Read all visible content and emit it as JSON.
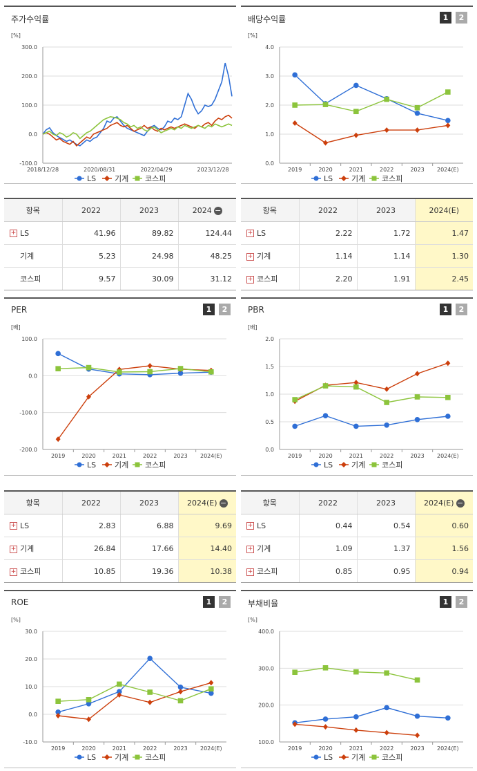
{
  "colors": {
    "s1": "#2f6fd6",
    "s2": "#cc3f0c",
    "s3": "#8cc43c",
    "highlight": "#fff8c8"
  },
  "legend_names": [
    "LS",
    "기계",
    "코스피"
  ],
  "btns": [
    "1",
    "2"
  ],
  "charts": [
    {
      "id": "c1",
      "title": "주가수익률",
      "unit": "[%]",
      "type": "line",
      "showBtns": false,
      "yticks": [
        "300.0",
        "200.0",
        "100.0",
        "0.0",
        "-100.0"
      ],
      "ylim": [
        -100,
        300
      ],
      "xticks": [
        "2018/12/28",
        "2020/08/31",
        "2022/04/29",
        "2023/12/28"
      ],
      "xtickpos": [
        0,
        0.3,
        0.6,
        0.9
      ],
      "series": [
        {
          "name": "LS",
          "values": [
            0,
            15,
            22,
            5,
            -5,
            -12,
            -18,
            -25,
            -20,
            -28,
            -35,
            -40,
            -30,
            -20,
            -25,
            -15,
            -10,
            5,
            20,
            45,
            40,
            55,
            60,
            45,
            30,
            20,
            15,
            10,
            5,
            0,
            -5,
            10,
            25,
            30,
            20,
            15,
            25,
            45,
            40,
            55,
            50,
            60,
            100,
            140,
            120,
            90,
            70,
            80,
            100,
            95,
            100,
            120,
            150,
            180,
            245,
            200,
            130
          ]
        },
        {
          "name": "기계",
          "values": [
            0,
            5,
            0,
            -10,
            -20,
            -15,
            -25,
            -30,
            -35,
            -25,
            -40,
            -30,
            -20,
            -10,
            -15,
            0,
            5,
            10,
            15,
            20,
            30,
            35,
            40,
            30,
            25,
            30,
            20,
            10,
            15,
            20,
            30,
            20,
            25,
            15,
            10,
            20,
            15,
            20,
            25,
            20,
            25,
            30,
            35,
            30,
            25,
            20,
            30,
            25,
            35,
            40,
            30,
            45,
            55,
            50,
            60,
            65,
            55
          ]
        },
        {
          "name": "코스피",
          "values": [
            0,
            5,
            10,
            0,
            -5,
            5,
            0,
            -10,
            -5,
            5,
            0,
            -15,
            -5,
            5,
            10,
            20,
            30,
            40,
            50,
            55,
            60,
            58,
            55,
            50,
            40,
            35,
            25,
            30,
            20,
            25,
            15,
            10,
            20,
            25,
            15,
            5,
            10,
            15,
            20,
            15,
            25,
            20,
            30,
            25,
            20,
            25,
            30,
            25,
            20,
            30,
            25,
            35,
            30,
            25,
            30,
            35,
            30
          ]
        }
      ]
    },
    {
      "id": "c2",
      "title": "배당수익률",
      "unit": "[%]",
      "type": "line",
      "showBtns": true,
      "yticks": [
        "4.0",
        "3.0",
        "2.0",
        "1.0",
        "0.0"
      ],
      "ylim": [
        0,
        4
      ],
      "xticks": [
        "2019",
        "2020",
        "2021",
        "2022",
        "2023",
        "2024(E)"
      ],
      "series": [
        {
          "name": "LS",
          "values": [
            3.04,
            2.05,
            2.68,
            2.22,
            1.72,
            1.47
          ]
        },
        {
          "name": "기계",
          "values": [
            1.38,
            0.7,
            0.96,
            1.14,
            1.14,
            1.3
          ]
        },
        {
          "name": "코스피",
          "values": [
            2.0,
            2.02,
            1.78,
            2.2,
            1.91,
            2.45
          ]
        }
      ]
    },
    {
      "id": "c3",
      "title": "PER",
      "unit": "[배]",
      "type": "line",
      "showBtns": true,
      "yticks": [
        "100.0",
        "0.0",
        "-100.0",
        "-200.0"
      ],
      "ylim": [
        -200,
        100
      ],
      "xticks": [
        "2019",
        "2020",
        "2021",
        "2022",
        "2023",
        "2024(E)"
      ],
      "series": [
        {
          "name": "LS",
          "values": [
            60,
            18,
            5,
            2.83,
            6.88,
            9.69
          ]
        },
        {
          "name": "기계",
          "values": [
            -172,
            -57,
            17,
            26.84,
            17.66,
            14.4
          ]
        },
        {
          "name": "코스피",
          "values": [
            19,
            22,
            10,
            10.85,
            19.36,
            10.38
          ]
        }
      ]
    },
    {
      "id": "c4",
      "title": "PBR",
      "unit": "[배]",
      "type": "line",
      "showBtns": true,
      "yticks": [
        "2.0",
        "1.5",
        "1.0",
        "0.5",
        "0.0"
      ],
      "ylim": [
        0,
        2
      ],
      "xticks": [
        "2019",
        "2020",
        "2021",
        "2022",
        "2023",
        "2024(E)"
      ],
      "series": [
        {
          "name": "LS",
          "values": [
            0.42,
            0.61,
            0.42,
            0.44,
            0.54,
            0.6
          ]
        },
        {
          "name": "기계",
          "values": [
            0.87,
            1.16,
            1.21,
            1.09,
            1.37,
            1.56
          ]
        },
        {
          "name": "코스피",
          "values": [
            0.9,
            1.15,
            1.13,
            0.85,
            0.95,
            0.94
          ]
        }
      ]
    },
    {
      "id": "c5",
      "title": "ROE",
      "unit": "[%]",
      "type": "line",
      "showBtns": true,
      "yticks": [
        "30.0",
        "20.0",
        "10.0",
        "0.0",
        "-10.0"
      ],
      "ylim": [
        -10,
        30
      ],
      "xticks": [
        "2019",
        "2020",
        "2021",
        "2022",
        "2023",
        "2024(E)"
      ],
      "series": [
        {
          "name": "LS",
          "values": [
            0.8,
            3.8,
            8.2,
            20.2,
            9.8,
            7.6
          ]
        },
        {
          "name": "기계",
          "values": [
            -0.5,
            -1.8,
            7.0,
            4.3,
            8.2,
            11.4
          ]
        },
        {
          "name": "코스피",
          "values": [
            4.7,
            5.3,
            10.9,
            8.0,
            4.9,
            9.2
          ]
        }
      ]
    },
    {
      "id": "c6",
      "title": "부채비율",
      "unit": "[%]",
      "type": "line",
      "showBtns": true,
      "yticks": [
        "400.0",
        "300.0",
        "200.0",
        "100.0"
      ],
      "ylim": [
        100,
        400
      ],
      "xticks": [
        "2019",
        "2020",
        "2021",
        "2022",
        "2023",
        "2024(E)"
      ],
      "series": [
        {
          "name": "LS",
          "values": [
            152,
            162,
            168,
            193,
            170,
            165
          ]
        },
        {
          "name": "기계",
          "values": [
            148,
            141,
            132,
            125,
            118,
            null
          ]
        },
        {
          "name": "코스피",
          "values": [
            289,
            301,
            290,
            287,
            268,
            null
          ]
        }
      ]
    }
  ],
  "tables": [
    {
      "id": "t1",
      "headers": [
        "항목",
        "2022",
        "2023",
        "2024"
      ],
      "minusIcon": true,
      "hlLast": false,
      "rows": [
        [
          "LS",
          "41.96",
          "89.82",
          "124.44"
        ],
        [
          "기계",
          "5.23",
          "24.98",
          "48.25"
        ],
        [
          "코스피",
          "9.57",
          "30.09",
          "31.12"
        ]
      ],
      "plus": [
        true,
        false,
        false
      ]
    },
    {
      "id": "t2",
      "headers": [
        "항목",
        "2022",
        "2023",
        "2024(E)"
      ],
      "minusIcon": false,
      "hlLast": true,
      "rows": [
        [
          "LS",
          "2.22",
          "1.72",
          "1.47"
        ],
        [
          "기계",
          "1.14",
          "1.14",
          "1.30"
        ],
        [
          "코스피",
          "2.20",
          "1.91",
          "2.45"
        ]
      ],
      "plus": [
        true,
        true,
        true
      ]
    },
    {
      "id": "t3",
      "headers": [
        "항목",
        "2022",
        "2023",
        "2024(E)"
      ],
      "minusIcon": true,
      "hlLast": true,
      "rows": [
        [
          "LS",
          "2.83",
          "6.88",
          "9.69"
        ],
        [
          "기계",
          "26.84",
          "17.66",
          "14.40"
        ],
        [
          "코스피",
          "10.85",
          "19.36",
          "10.38"
        ]
      ],
      "plus": [
        true,
        true,
        true
      ]
    },
    {
      "id": "t4",
      "headers": [
        "항목",
        "2022",
        "2023",
        "2024(E)"
      ],
      "minusIcon": true,
      "hlLast": true,
      "rows": [
        [
          "LS",
          "0.44",
          "0.54",
          "0.60"
        ],
        [
          "기계",
          "1.09",
          "1.37",
          "1.56"
        ],
        [
          "코스피",
          "0.85",
          "0.95",
          "0.94"
        ]
      ],
      "plus": [
        true,
        true,
        true
      ]
    }
  ]
}
